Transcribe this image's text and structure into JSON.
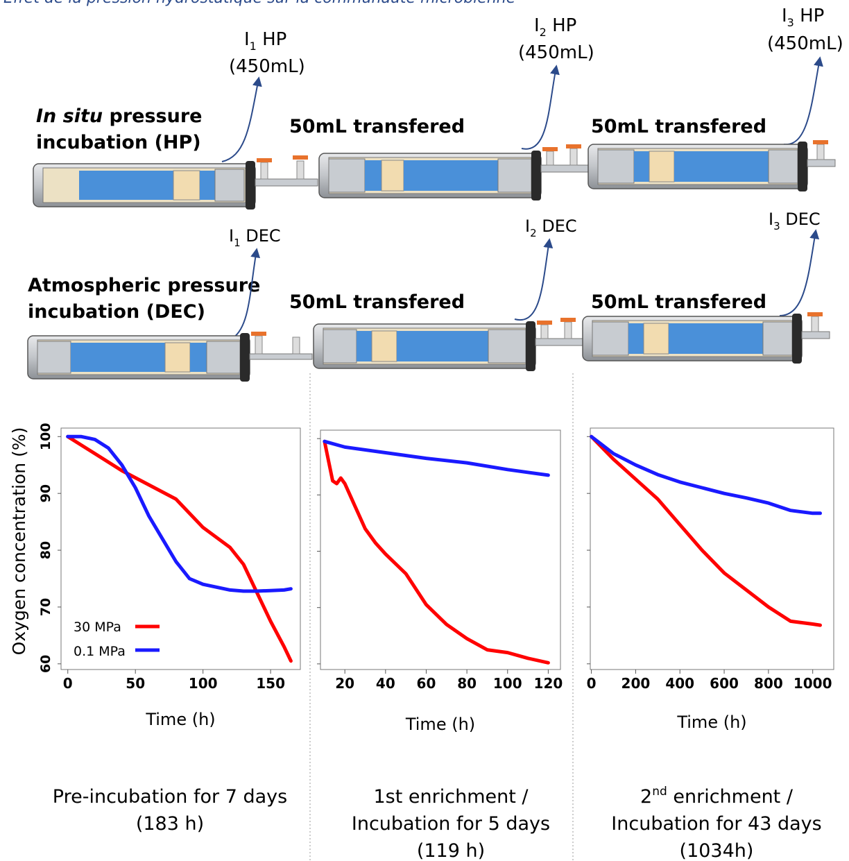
{
  "header_title": "Effet de la pression hydrostatique sur la communauté microbienne",
  "rows": [
    {
      "label_line1_italic": "In situ",
      "label_line1_rest": " pressure",
      "label_line2": "incubation (HP)",
      "outputs": [
        {
          "name": "I",
          "sub": "1",
          "suffix": " HP",
          "volume": "(450mL)"
        },
        {
          "name": "I",
          "sub": "2",
          "suffix": " HP",
          "volume": "(450mL)"
        },
        {
          "name": "I",
          "sub": "3",
          "suffix": " HP",
          "volume": "(450mL)"
        }
      ],
      "transfers": [
        "50mL transfered",
        "50mL transfered"
      ]
    },
    {
      "label_line1": "Atmospheric pressure",
      "label_line2": "incubation (DEC)",
      "outputs": [
        {
          "name": "I",
          "sub": "1",
          "suffix": " DEC"
        },
        {
          "name": "I",
          "sub": "2",
          "suffix": " DEC"
        },
        {
          "name": "I",
          "sub": "3",
          "suffix": " DEC"
        }
      ],
      "transfers": [
        "50mL transfered",
        "50mL transfered"
      ]
    }
  ],
  "colors": {
    "series_30MPa": "#ff0000",
    "series_01MPa": "#1a1aff",
    "arrow": "#2b4a8a",
    "vessel_water": "#4a90d9",
    "vessel_body": "#c9ccd0",
    "valve": "#e8722c"
  },
  "y_axis_label": "Oxygen concentration (%)",
  "captions": [
    {
      "lines": [
        "Pre-incubation for 7 days",
        "(183 h)"
      ]
    },
    {
      "lines": [
        "1st enrichment /",
        "Incubation for 5 days",
        "(119 h)"
      ]
    },
    {
      "sup_prefix": "2",
      "sup": "nd",
      "line1_rest": " enrichment /",
      "lines": [
        "Incubation for 43 days",
        "(1034h)"
      ]
    }
  ],
  "chart_data": [
    {
      "type": "line",
      "title": "",
      "xlabel": "Time (h)",
      "ylabel": "Oxygen concentration (%)",
      "xlim": [
        -5,
        172
      ],
      "ylim": [
        59,
        101.5
      ],
      "xticks": [
        0,
        50,
        100,
        150
      ],
      "yticks": [
        60,
        70,
        80,
        90,
        100
      ],
      "legend": "bottom-left",
      "series": [
        {
          "name": "30 MPa",
          "color": "#ff0000",
          "x": [
            0,
            20,
            40,
            60,
            80,
            100,
            120,
            130,
            140,
            150,
            160,
            165
          ],
          "y": [
            100,
            97,
            94,
            91.5,
            89,
            84,
            80.5,
            77.5,
            72.5,
            67.5,
            63,
            60.5
          ]
        },
        {
          "name": "0.1 MPa",
          "color": "#1a1aff",
          "x": [
            0,
            10,
            20,
            30,
            40,
            50,
            60,
            70,
            80,
            90,
            100,
            110,
            120,
            130,
            140,
            150,
            160,
            165
          ],
          "y": [
            100,
            100,
            99.5,
            98,
            95,
            91,
            86,
            82,
            78,
            75,
            74,
            73.5,
            73,
            72.8,
            72.8,
            72.9,
            73,
            73.2
          ]
        }
      ]
    },
    {
      "type": "line",
      "title": "",
      "xlabel": "Time (h)",
      "ylabel": "",
      "xlim": [
        8,
        126
      ],
      "ylim": [
        59,
        101.5
      ],
      "xticks": [
        20,
        40,
        60,
        80,
        100,
        120
      ],
      "yticks": [
        60,
        70,
        80,
        90,
        100
      ],
      "series": [
        {
          "name": "30 MPa",
          "color": "#ff0000",
          "x": [
            10,
            12,
            14,
            16,
            18,
            20,
            25,
            30,
            35,
            40,
            50,
            60,
            70,
            80,
            90,
            100,
            110,
            120
          ],
          "y": [
            99.5,
            96,
            92.5,
            92,
            93,
            92,
            88,
            84,
            81.5,
            79.5,
            76,
            70.5,
            67,
            64.5,
            62.5,
            62,
            61,
            60.2
          ]
        },
        {
          "name": "0.1 MPa",
          "color": "#1a1aff",
          "x": [
            10,
            20,
            40,
            60,
            80,
            100,
            120
          ],
          "y": [
            99.5,
            98.5,
            97.5,
            96.5,
            95.7,
            94.5,
            93.5
          ]
        }
      ]
    },
    {
      "type": "line",
      "title": "",
      "xlabel": "Time (h)",
      "ylabel": "",
      "xlim": [
        -5,
        1095
      ],
      "ylim": [
        59,
        101.5
      ],
      "xticks": [
        0,
        200,
        400,
        600,
        800,
        1000
      ],
      "yticks": [
        60,
        70,
        80,
        90,
        100
      ],
      "series": [
        {
          "name": "30 MPa",
          "color": "#ff0000",
          "x": [
            0,
            100,
            200,
            300,
            400,
            500,
            600,
            700,
            800,
            900,
            1000,
            1034
          ],
          "y": [
            100,
            96,
            92.5,
            89,
            84.5,
            80,
            76,
            73,
            70,
            67.5,
            67,
            66.8
          ]
        },
        {
          "name": "0.1 MPa",
          "color": "#1a1aff",
          "x": [
            0,
            100,
            200,
            300,
            400,
            500,
            600,
            700,
            800,
            900,
            1000,
            1034
          ],
          "y": [
            100,
            97,
            95,
            93.3,
            92,
            91,
            90,
            89.2,
            88.3,
            87,
            86.5,
            86.5
          ]
        }
      ]
    }
  ]
}
